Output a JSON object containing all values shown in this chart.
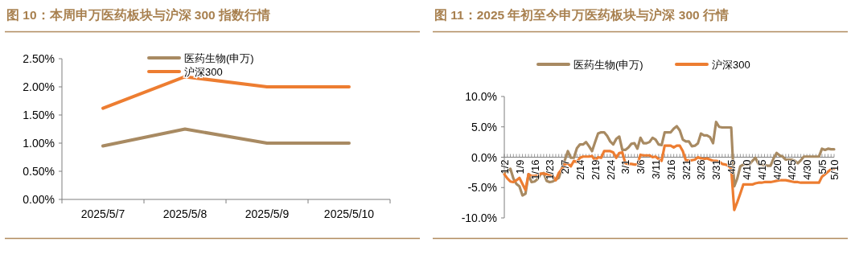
{
  "chart_data": [
    {
      "type": "line",
      "title": "图 10：本周申万医药板块与沪深 300 指数行情",
      "categories": [
        "2025/5/7",
        "2025/5/8",
        "2025/5/9",
        "2025/5/10"
      ],
      "series": [
        {
          "name": "医药生物(申万)",
          "color": "#a88a62",
          "values": [
            0.95,
            1.25,
            1.0,
            1.0
          ]
        },
        {
          "name": "沪深300",
          "color": "#ed7d31",
          "values": [
            1.62,
            2.18,
            2.0,
            2.0
          ]
        }
      ],
      "ylim": [
        0,
        2.5
      ],
      "yticks": [
        {
          "value": 0,
          "label": "0.00%"
        },
        {
          "value": 0.5,
          "label": "0.50%"
        },
        {
          "value": 1,
          "label": "1.00%"
        },
        {
          "value": 1.5,
          "label": "1.50%"
        },
        {
          "value": 2,
          "label": "2.00%"
        },
        {
          "value": 2.5,
          "label": "2.50%"
        }
      ],
      "legend": "top",
      "grid": false
    },
    {
      "type": "line",
      "title": "图 11：2025 年初至今申万医药板块与沪深 300 行情",
      "categories": [
        "1/2",
        null,
        null,
        null,
        null,
        "1/9",
        null,
        null,
        null,
        null,
        "1/16",
        null,
        null,
        null,
        null,
        "1/23",
        null,
        null,
        null,
        null,
        "2/7",
        null,
        null,
        null,
        null,
        "2/14",
        null,
        null,
        null,
        null,
        "2/19",
        null,
        null,
        null,
        null,
        "2/24",
        null,
        null,
        null,
        null,
        "3/1",
        null,
        null,
        null,
        null,
        "3/6",
        null,
        null,
        null,
        null,
        "3/11",
        null,
        null,
        null,
        null,
        "3/16",
        null,
        null,
        null,
        null,
        "3/21",
        null,
        null,
        null,
        null,
        "3/26",
        null,
        null,
        null,
        null,
        "3/31",
        null,
        null,
        null,
        null,
        "4/5",
        null,
        null,
        null,
        null,
        "4/10",
        null,
        null,
        null,
        null,
        "4/15",
        null,
        null,
        null,
        null,
        "4/20",
        null,
        null,
        null,
        null,
        "4/25",
        null,
        null,
        null,
        null,
        "4/30",
        null,
        null,
        null,
        null,
        "5/5",
        null,
        null,
        null,
        "5/10"
      ],
      "series": [
        {
          "name": "医药生物(申万)",
          "color": "#a88a62",
          "values": [
            -2.6,
            -2.2,
            -1.9,
            -3.5,
            -4.4,
            -4.8,
            -6.3,
            -6.0,
            -2.8,
            -4.1,
            -4.0,
            -3.6,
            -2.8,
            -2.6,
            -3.9,
            -4.1,
            -4.0,
            -3.7,
            -3.4,
            -1.9,
            -0.5,
            1.0,
            -0.1,
            -0.1,
            1.5,
            2.1,
            2.1,
            2.5,
            1.8,
            1.0,
            2.5,
            3.9,
            4.1,
            4.1,
            3.5,
            2.6,
            2.1,
            3.0,
            3.4,
            1.2,
            1.2,
            1.6,
            2.2,
            2.3,
            1.4,
            3.2,
            2.3,
            2.3,
            2.5,
            3.2,
            2.9,
            2.1,
            2.0,
            4.1,
            4.1,
            4.1,
            4.7,
            5.1,
            4.4,
            2.9,
            2.6,
            2.6,
            1.8,
            1.9,
            2.3,
            3.9,
            3.6,
            3.6,
            3.3,
            2.3,
            5.8,
            5.0,
            4.9,
            4.9,
            4.9,
            4.9,
            -4.8,
            -3.5,
            -1.5,
            -1.2,
            -1.2,
            -1.2,
            -0.6,
            -0.1,
            -1.1,
            -1.2,
            -1.3,
            -1.4,
            -1.4,
            -0.2,
            0.7,
            0.3,
            0.1,
            -0.4,
            -0.4,
            -0.4,
            -0.6,
            -1.0,
            -0.5,
            0.1,
            0.1,
            0.1,
            0.1,
            0.1,
            0.1,
            1.4,
            1.2,
            1.4,
            1.3,
            1.3
          ]
        },
        {
          "name": "沪深300",
          "color": "#ed7d31",
          "values": [
            -2.8,
            -3.5,
            -4.0,
            -4.1,
            -3.8,
            -3.4,
            -4.4,
            -5.4,
            -2.8,
            -3.1,
            -3.1,
            -3.0,
            -2.7,
            -2.7,
            -2.8,
            -3.0,
            -3.1,
            -3.8,
            -2.6,
            -2.0,
            -1.2,
            -1.0,
            -1.5,
            -0.6,
            -0.8,
            -0.1,
            0.1,
            0.1,
            0.1,
            0.2,
            -0.5,
            0.0,
            -0.1,
            1.0,
            1.0,
            1.0,
            0.8,
            -0.1,
            0.7,
            0.8,
            -1.0,
            -1.1,
            -1.1,
            -1.2,
            -1.2,
            0.4,
            0.3,
            0.3,
            0.3,
            0.0,
            0.1,
            -0.3,
            -0.6,
            1.9,
            1.9,
            1.9,
            1.6,
            1.9,
            1.9,
            1.0,
            -0.5,
            -0.5,
            -0.5,
            -0.4,
            0.0,
            -0.2,
            -0.3,
            -0.2,
            -0.4,
            -0.6,
            -0.6,
            -0.7,
            -1.1,
            -1.2,
            -1.4,
            -1.9,
            -8.7,
            -7.4,
            -6.0,
            -4.5,
            -4.5,
            -4.5,
            -4.5,
            -4.3,
            -4.2,
            -4.2,
            -4.1,
            -4.1,
            -4.1,
            -4.0,
            -3.9,
            -3.8,
            -3.8,
            -3.8,
            -3.9,
            -4.0,
            -4.1,
            -4.1,
            -4.2,
            -4.2,
            -4.2,
            -4.2,
            -4.2,
            -4.2,
            -4.2,
            -3.2,
            -2.8,
            -2.4,
            -2.0,
            -1.9
          ]
        }
      ],
      "ylim": [
        -10,
        10
      ],
      "yticks": [
        {
          "value": -10,
          "label": "-10.0%"
        },
        {
          "value": -5,
          "label": "-5.0%"
        },
        {
          "value": 0,
          "label": "0.0%"
        },
        {
          "value": 5,
          "label": "5.0%"
        },
        {
          "value": 10,
          "label": "10.0%"
        }
      ],
      "legend": "top",
      "grid": false
    }
  ]
}
